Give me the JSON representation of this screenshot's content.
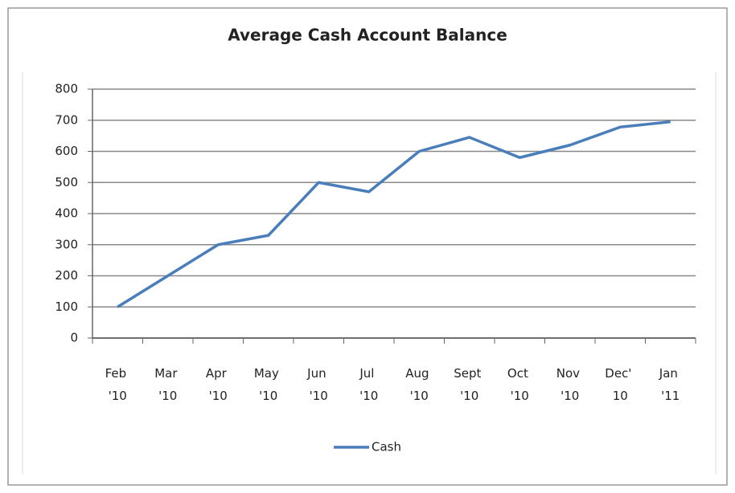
{
  "chart_data": {
    "type": "line",
    "title": "Average Cash Account Balance",
    "categories": [
      "Feb '10",
      "Mar '10",
      "Apr '10",
      "May '10",
      "Jun '10",
      "Jul '10",
      "Aug '10",
      "Sept '10",
      "Oct '10",
      "Nov '10",
      "Dec' 10",
      "Jan '11"
    ],
    "series": [
      {
        "name": "Cash",
        "color": "#4a7ebb",
        "values": [
          100,
          200,
          300,
          330,
          500,
          470,
          600,
          645,
          580,
          620,
          678,
          695
        ]
      }
    ],
    "ylim": [
      0,
      800
    ],
    "yticks": [
      0,
      100,
      200,
      300,
      400,
      500,
      600,
      700,
      800
    ],
    "grid": true,
    "legend": "bottom"
  }
}
